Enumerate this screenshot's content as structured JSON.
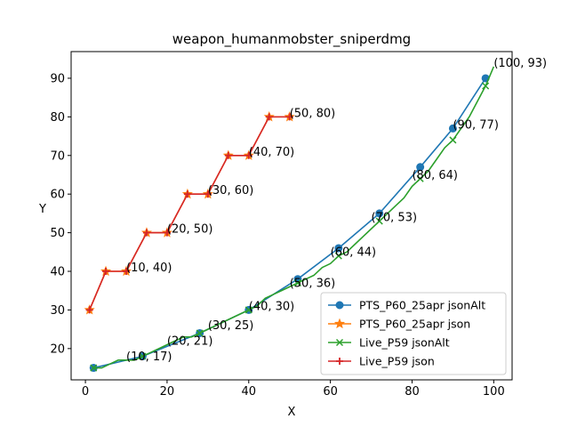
{
  "chart_data": {
    "type": "line",
    "title": "weapon_humanmobster_sniperdmg",
    "xlabel": "X",
    "ylabel": "Y",
    "xlim": [
      -3.5,
      104.5
    ],
    "ylim": [
      11.9,
      96.9
    ],
    "xticks": [
      0,
      20,
      40,
      60,
      80,
      100
    ],
    "yticks": [
      20,
      30,
      40,
      50,
      60,
      70,
      80,
      90
    ],
    "grid": false,
    "legend_position": "lower right",
    "series": [
      {
        "name": "PTS_P60_25apr jsonAlt",
        "color": "#1f77b4",
        "marker": "circle",
        "x": [
          2,
          14,
          28,
          40,
          52,
          62,
          72,
          82,
          90,
          98
        ],
        "y": [
          15,
          18,
          24,
          30,
          38,
          46,
          55,
          67,
          77,
          90
        ]
      },
      {
        "name": "PTS_P60_25apr json",
        "color": "#ff7f0e",
        "marker": "star",
        "x": [
          1,
          5,
          10,
          15,
          20,
          25,
          30,
          35,
          40,
          45,
          50
        ],
        "y": [
          30,
          40,
          40,
          50,
          50,
          60,
          60,
          70,
          70,
          80,
          80
        ]
      },
      {
        "name": "Live_P59 jsonAlt",
        "color": "#2ca02c",
        "marker": "x",
        "x": [
          2,
          4,
          6,
          8,
          10,
          12,
          14,
          16,
          18,
          20,
          22,
          24,
          26,
          28,
          30,
          32,
          34,
          36,
          38,
          40,
          42,
          44,
          46,
          48,
          50,
          52,
          54,
          56,
          58,
          60,
          62,
          64,
          66,
          68,
          70,
          72,
          74,
          76,
          78,
          80,
          82,
          84,
          86,
          88,
          90,
          92,
          94,
          96,
          98,
          100
        ],
        "y": [
          15,
          15,
          16,
          17,
          17,
          17,
          18,
          19,
          20,
          21,
          22,
          23,
          23,
          24,
          25,
          26,
          27,
          28,
          29,
          30,
          31,
          33,
          34,
          35,
          36,
          37,
          38,
          39,
          41,
          42,
          44,
          45,
          47,
          49,
          51,
          53,
          55,
          57,
          59,
          62,
          64,
          66,
          69,
          72,
          74,
          77,
          80,
          84,
          88,
          93
        ]
      },
      {
        "name": "Live_P59 json",
        "color": "#d62728",
        "marker": "plus",
        "x": [
          1,
          5,
          10,
          15,
          20,
          25,
          30,
          35,
          40,
          45,
          50
        ],
        "y": [
          30,
          40,
          40,
          50,
          50,
          60,
          60,
          70,
          70,
          80,
          80
        ]
      }
    ],
    "annotations": [
      {
        "label": "(10, 17)",
        "x": 10,
        "y": 17
      },
      {
        "label": "(20, 21)",
        "x": 20,
        "y": 21
      },
      {
        "label": "(30, 25)",
        "x": 30,
        "y": 25
      },
      {
        "label": "(40, 30)",
        "x": 40,
        "y": 30
      },
      {
        "label": "(50, 36)",
        "x": 50,
        "y": 36
      },
      {
        "label": "(60, 44)",
        "x": 60,
        "y": 44
      },
      {
        "label": "(70, 53)",
        "x": 70,
        "y": 53
      },
      {
        "label": "(80, 64)",
        "x": 80,
        "y": 64
      },
      {
        "label": "(90, 77)",
        "x": 90,
        "y": 77
      },
      {
        "label": "(100, 93)",
        "x": 100,
        "y": 93
      },
      {
        "label": "(10, 40)",
        "x": 10,
        "y": 40
      },
      {
        "label": "(20, 50)",
        "x": 20,
        "y": 50
      },
      {
        "label": "(30, 60)",
        "x": 30,
        "y": 60
      },
      {
        "label": "(40, 70)",
        "x": 40,
        "y": 70
      },
      {
        "label": "(50, 80)",
        "x": 50,
        "y": 80
      }
    ]
  }
}
